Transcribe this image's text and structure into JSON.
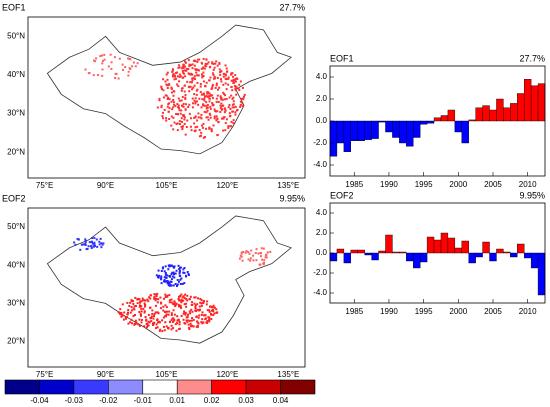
{
  "chart_data": [
    {
      "type": "map",
      "title": "EOF1",
      "subtitle": "27.7%",
      "lat_labels": [
        "50°N",
        "40°N",
        "30°N",
        "20°N"
      ],
      "lon_labels": [
        "75°E",
        "90°E",
        "105°E",
        "120°E",
        "135°E"
      ]
    },
    {
      "type": "map",
      "title": "EOF2",
      "subtitle": "9.95%",
      "lat_labels": [
        "50°N",
        "40°N",
        "30°N",
        "20°N"
      ],
      "lon_labels": [
        "75°E",
        "90°E",
        "105°E",
        "120°E",
        "135°E"
      ]
    },
    {
      "type": "bar",
      "title": "EOF1",
      "subtitle": "27.7%",
      "x": [
        1982,
        1983,
        1984,
        1985,
        1986,
        1987,
        1988,
        1989,
        1990,
        1991,
        1992,
        1993,
        1994,
        1995,
        1996,
        1997,
        1998,
        1999,
        2000,
        2001,
        2002,
        2003,
        2004,
        2005,
        2006,
        2007,
        2008,
        2009,
        2010,
        2011,
        2012
      ],
      "values": [
        -3.2,
        -2.0,
        -2.8,
        -1.8,
        -1.8,
        -1.7,
        -1.6,
        -0.1,
        -1.0,
        -1.5,
        -2.0,
        -2.3,
        -1.5,
        -0.3,
        -0.2,
        0.3,
        0.5,
        1.0,
        -1.0,
        -2.0,
        0.1,
        1.2,
        1.4,
        1.0,
        2.0,
        1.2,
        1.6,
        2.5,
        3.8,
        3.2,
        3.4
      ],
      "positive_color": "#ff0000",
      "negative_color": "#0000ff",
      "xlim": [
        1981.5,
        2012.5
      ],
      "xticks": [
        1985,
        1990,
        1995,
        2000,
        2005,
        2010
      ],
      "ylim": [
        -5,
        5
      ],
      "yticks": [
        {
          "value": 4,
          "label": "4.0"
        },
        {
          "value": 2,
          "label": "2.0"
        },
        {
          "value": 0,
          "label": "0.0"
        },
        {
          "value": -2,
          "label": "-2.0"
        },
        {
          "value": -4,
          "label": "-4.0"
        }
      ]
    },
    {
      "type": "bar",
      "title": "EOF2",
      "subtitle": "9.95%",
      "x": [
        1982,
        1983,
        1984,
        1985,
        1986,
        1987,
        1988,
        1989,
        1990,
        1991,
        1992,
        1993,
        1994,
        1995,
        1996,
        1997,
        1998,
        1999,
        2000,
        2001,
        2002,
        2003,
        2004,
        2005,
        2006,
        2007,
        2008,
        2009,
        2010,
        2011,
        2012
      ],
      "values": [
        -0.8,
        0.4,
        -1.0,
        0.3,
        0.3,
        -0.2,
        -0.7,
        0.2,
        1.8,
        0.1,
        0.1,
        -0.8,
        -1.5,
        -0.9,
        1.6,
        1.3,
        2.0,
        1.5,
        0.5,
        1.2,
        -1.0,
        -0.4,
        1.1,
        -0.8,
        0.4,
        0.1,
        -0.4,
        0.9,
        -0.5,
        -1.5,
        -4.2
      ],
      "positive_color": "#ff0000",
      "negative_color": "#0000ff",
      "xlim": [
        1981.5,
        2012.5
      ],
      "xticks": [
        1985,
        1990,
        1995,
        2000,
        2005,
        2010
      ],
      "ylim": [
        -5,
        5
      ],
      "yticks": [
        {
          "value": 4,
          "label": "4.0"
        },
        {
          "value": 2,
          "label": "2.0"
        },
        {
          "value": 0,
          "label": "0.0"
        },
        {
          "value": -2,
          "label": "-2.0"
        },
        {
          "value": -4,
          "label": "-4.0"
        }
      ]
    },
    {
      "type": "colorbar",
      "colors": [
        "#00008b",
        "#0000cd",
        "#3a3aff",
        "#8c8cff",
        "#ffffff",
        "#ff8c8c",
        "#ff0000",
        "#c80000",
        "#820000"
      ],
      "ticks": [
        -0.04,
        -0.03,
        -0.02,
        -0.01,
        0.01,
        0.02,
        0.03,
        0.04
      ]
    }
  ]
}
